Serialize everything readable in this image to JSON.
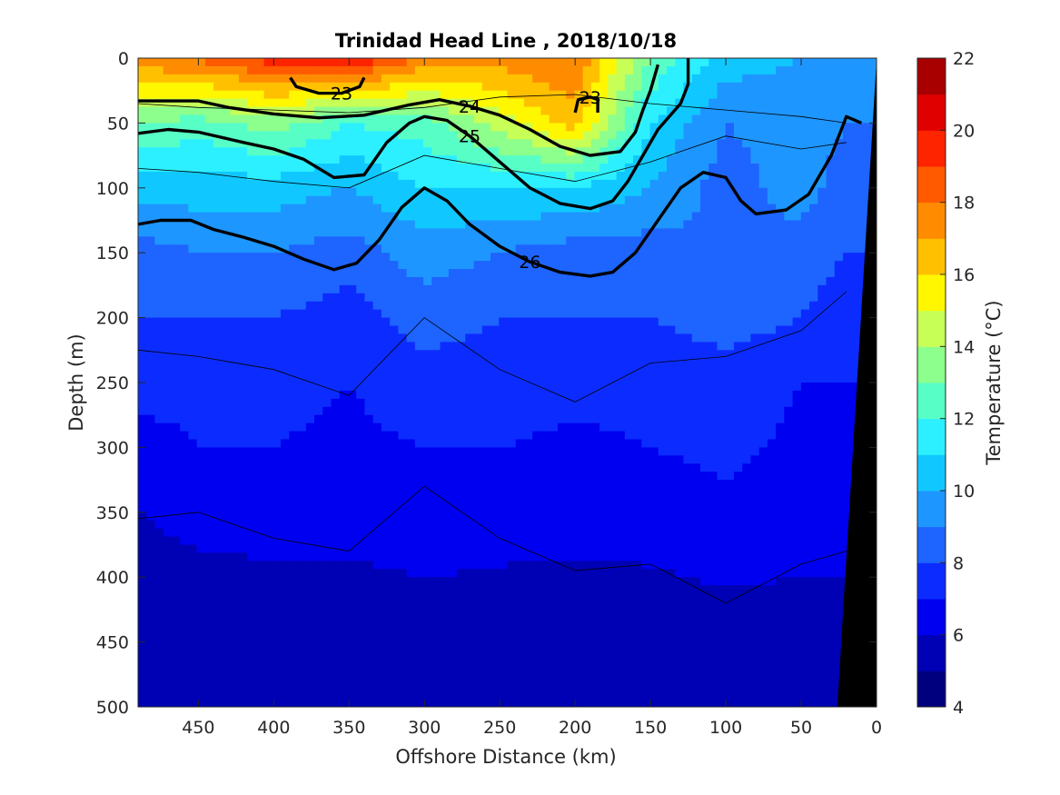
{
  "chart_data": {
    "type": "heatmap",
    "title": "Trinidad Head Line , 2018/10/18",
    "xlabel": "Offshore Distance (km)",
    "ylabel": "Depth (m)",
    "xlim": [
      490,
      0
    ],
    "ylim": [
      0,
      500
    ],
    "x_reversed": true,
    "y_reversed": true,
    "xticks": [
      450,
      400,
      350,
      300,
      250,
      200,
      150,
      100,
      50,
      0
    ],
    "yticks": [
      0,
      50,
      100,
      150,
      200,
      250,
      300,
      350,
      400,
      450,
      500
    ],
    "colorbar": {
      "label": "Temperature (°C)",
      "range": [
        4,
        22
      ],
      "ticks": [
        4,
        6,
        8,
        10,
        12,
        14,
        16,
        18,
        20,
        22
      ],
      "levels": [
        4,
        5,
        6,
        7,
        8,
        9,
        10,
        11,
        12,
        13,
        14,
        15,
        16,
        17,
        18,
        19,
        20,
        21,
        22
      ],
      "colors": [
        "#00007f",
        "#0000b4",
        "#0000f0",
        "#0c2cff",
        "#1e64ff",
        "#1e96ff",
        "#10c8ff",
        "#2cf0ff",
        "#57ffc7",
        "#8cff8c",
        "#c7ff57",
        "#fff700",
        "#ffc000",
        "#ff8c00",
        "#ff5a00",
        "#ff2400",
        "#e00000",
        "#a80000"
      ]
    },
    "depth_levels": [
      0,
      50,
      100,
      150,
      200,
      250,
      300,
      350,
      400,
      450,
      500
    ],
    "distance": [
      490,
      450,
      400,
      350,
      300,
      250,
      200,
      150,
      100,
      50,
      20
    ],
    "temperature": [
      [
        17.8,
        18.2,
        19.5,
        20.2,
        17.8,
        17.5,
        18.0,
        13.0,
        10.5,
        10.0,
        10.0
      ],
      [
        13.0,
        12.5,
        13.5,
        12.0,
        12.5,
        14.5,
        16.5,
        11.0,
        9.0,
        9.5,
        9.0
      ],
      [
        10.5,
        10.5,
        10.5,
        10.0,
        11.0,
        11.0,
        11.0,
        10.0,
        8.5,
        9.5,
        8.5
      ],
      [
        8.5,
        9.0,
        9.0,
        8.5,
        9.5,
        9.0,
        8.5,
        8.5,
        9.0,
        8.5,
        8.0
      ],
      [
        8.0,
        8.0,
        8.0,
        7.5,
        8.5,
        8.0,
        8.0,
        8.0,
        8.5,
        8.0,
        7.5
      ],
      [
        7.5,
        7.3,
        7.3,
        7.0,
        7.5,
        7.5,
        7.3,
        7.3,
        7.5,
        7.0,
        7.0
      ],
      [
        6.5,
        7.0,
        7.0,
        6.8,
        7.0,
        7.0,
        6.8,
        7.0,
        7.2,
        6.8,
        6.8
      ],
      [
        6.0,
        6.3,
        6.5,
        6.5,
        6.8,
        6.5,
        6.5,
        6.5,
        6.8,
        6.5,
        6.5
      ],
      [
        5.6,
        5.8,
        5.8,
        5.8,
        6.0,
        5.9,
        5.8,
        5.9,
        6.1,
        6.0,
        6.0
      ],
      [
        5.3,
        5.3,
        5.3,
        5.4,
        5.5,
        5.5,
        5.4,
        5.5,
        5.5,
        5.6,
        5.8
      ],
      [
        5.0,
        5.1,
        5.1,
        5.2,
        5.3,
        5.3,
        5.2,
        5.3,
        5.3,
        5.3,
        5.4
      ]
    ],
    "density_contours": [
      {
        "label": "23",
        "points": [
          [
            389,
            15
          ],
          [
            385,
            22
          ],
          [
            370,
            27
          ],
          [
            355,
            27
          ],
          [
            343,
            22
          ],
          [
            340,
            15
          ]
        ]
      },
      {
        "label": "23",
        "points": [
          [
            200,
            42
          ],
          [
            198,
            32
          ],
          [
            190,
            30
          ],
          [
            185,
            32
          ],
          [
            185,
            42
          ]
        ]
      },
      {
        "label": "24",
        "points": [
          [
            490,
            33
          ],
          [
            470,
            33
          ],
          [
            450,
            33
          ],
          [
            430,
            38
          ],
          [
            400,
            43
          ],
          [
            370,
            46
          ],
          [
            340,
            44
          ],
          [
            310,
            36
          ],
          [
            290,
            32
          ],
          [
            270,
            37
          ],
          [
            250,
            44
          ],
          [
            230,
            55
          ],
          [
            210,
            68
          ],
          [
            190,
            75
          ],
          [
            170,
            72
          ],
          [
            160,
            57
          ],
          [
            155,
            40
          ],
          [
            150,
            25
          ],
          [
            145,
            5
          ]
        ]
      },
      {
        "label": "25",
        "points": [
          [
            490,
            58
          ],
          [
            470,
            55
          ],
          [
            450,
            57
          ],
          [
            420,
            65
          ],
          [
            400,
            70
          ],
          [
            380,
            78
          ],
          [
            360,
            92
          ],
          [
            340,
            90
          ],
          [
            325,
            65
          ],
          [
            310,
            50
          ],
          [
            300,
            45
          ],
          [
            285,
            48
          ],
          [
            270,
            60
          ],
          [
            250,
            80
          ],
          [
            230,
            100
          ],
          [
            210,
            112
          ],
          [
            190,
            116
          ],
          [
            175,
            110
          ],
          [
            165,
            95
          ],
          [
            155,
            75
          ],
          [
            145,
            55
          ],
          [
            130,
            35
          ],
          [
            125,
            20
          ],
          [
            125,
            0
          ]
        ]
      },
      {
        "label": "26",
        "points": [
          [
            490,
            128
          ],
          [
            475,
            125
          ],
          [
            455,
            125
          ],
          [
            440,
            132
          ],
          [
            420,
            138
          ],
          [
            400,
            145
          ],
          [
            380,
            155
          ],
          [
            360,
            163
          ],
          [
            345,
            158
          ],
          [
            330,
            140
          ],
          [
            315,
            115
          ],
          [
            300,
            100
          ],
          [
            285,
            110
          ],
          [
            270,
            128
          ],
          [
            250,
            145
          ],
          [
            230,
            157
          ],
          [
            210,
            165
          ],
          [
            190,
            168
          ],
          [
            175,
            165
          ],
          [
            160,
            150
          ],
          [
            145,
            125
          ],
          [
            130,
            100
          ],
          [
            115,
            88
          ],
          [
            100,
            92
          ],
          [
            90,
            110
          ],
          [
            80,
            120
          ],
          [
            60,
            117
          ],
          [
            45,
            105
          ],
          [
            30,
            75
          ],
          [
            20,
            45
          ],
          [
            10,
            50
          ]
        ]
      }
    ],
    "coastline": "black wedge near 0–20 km"
  }
}
